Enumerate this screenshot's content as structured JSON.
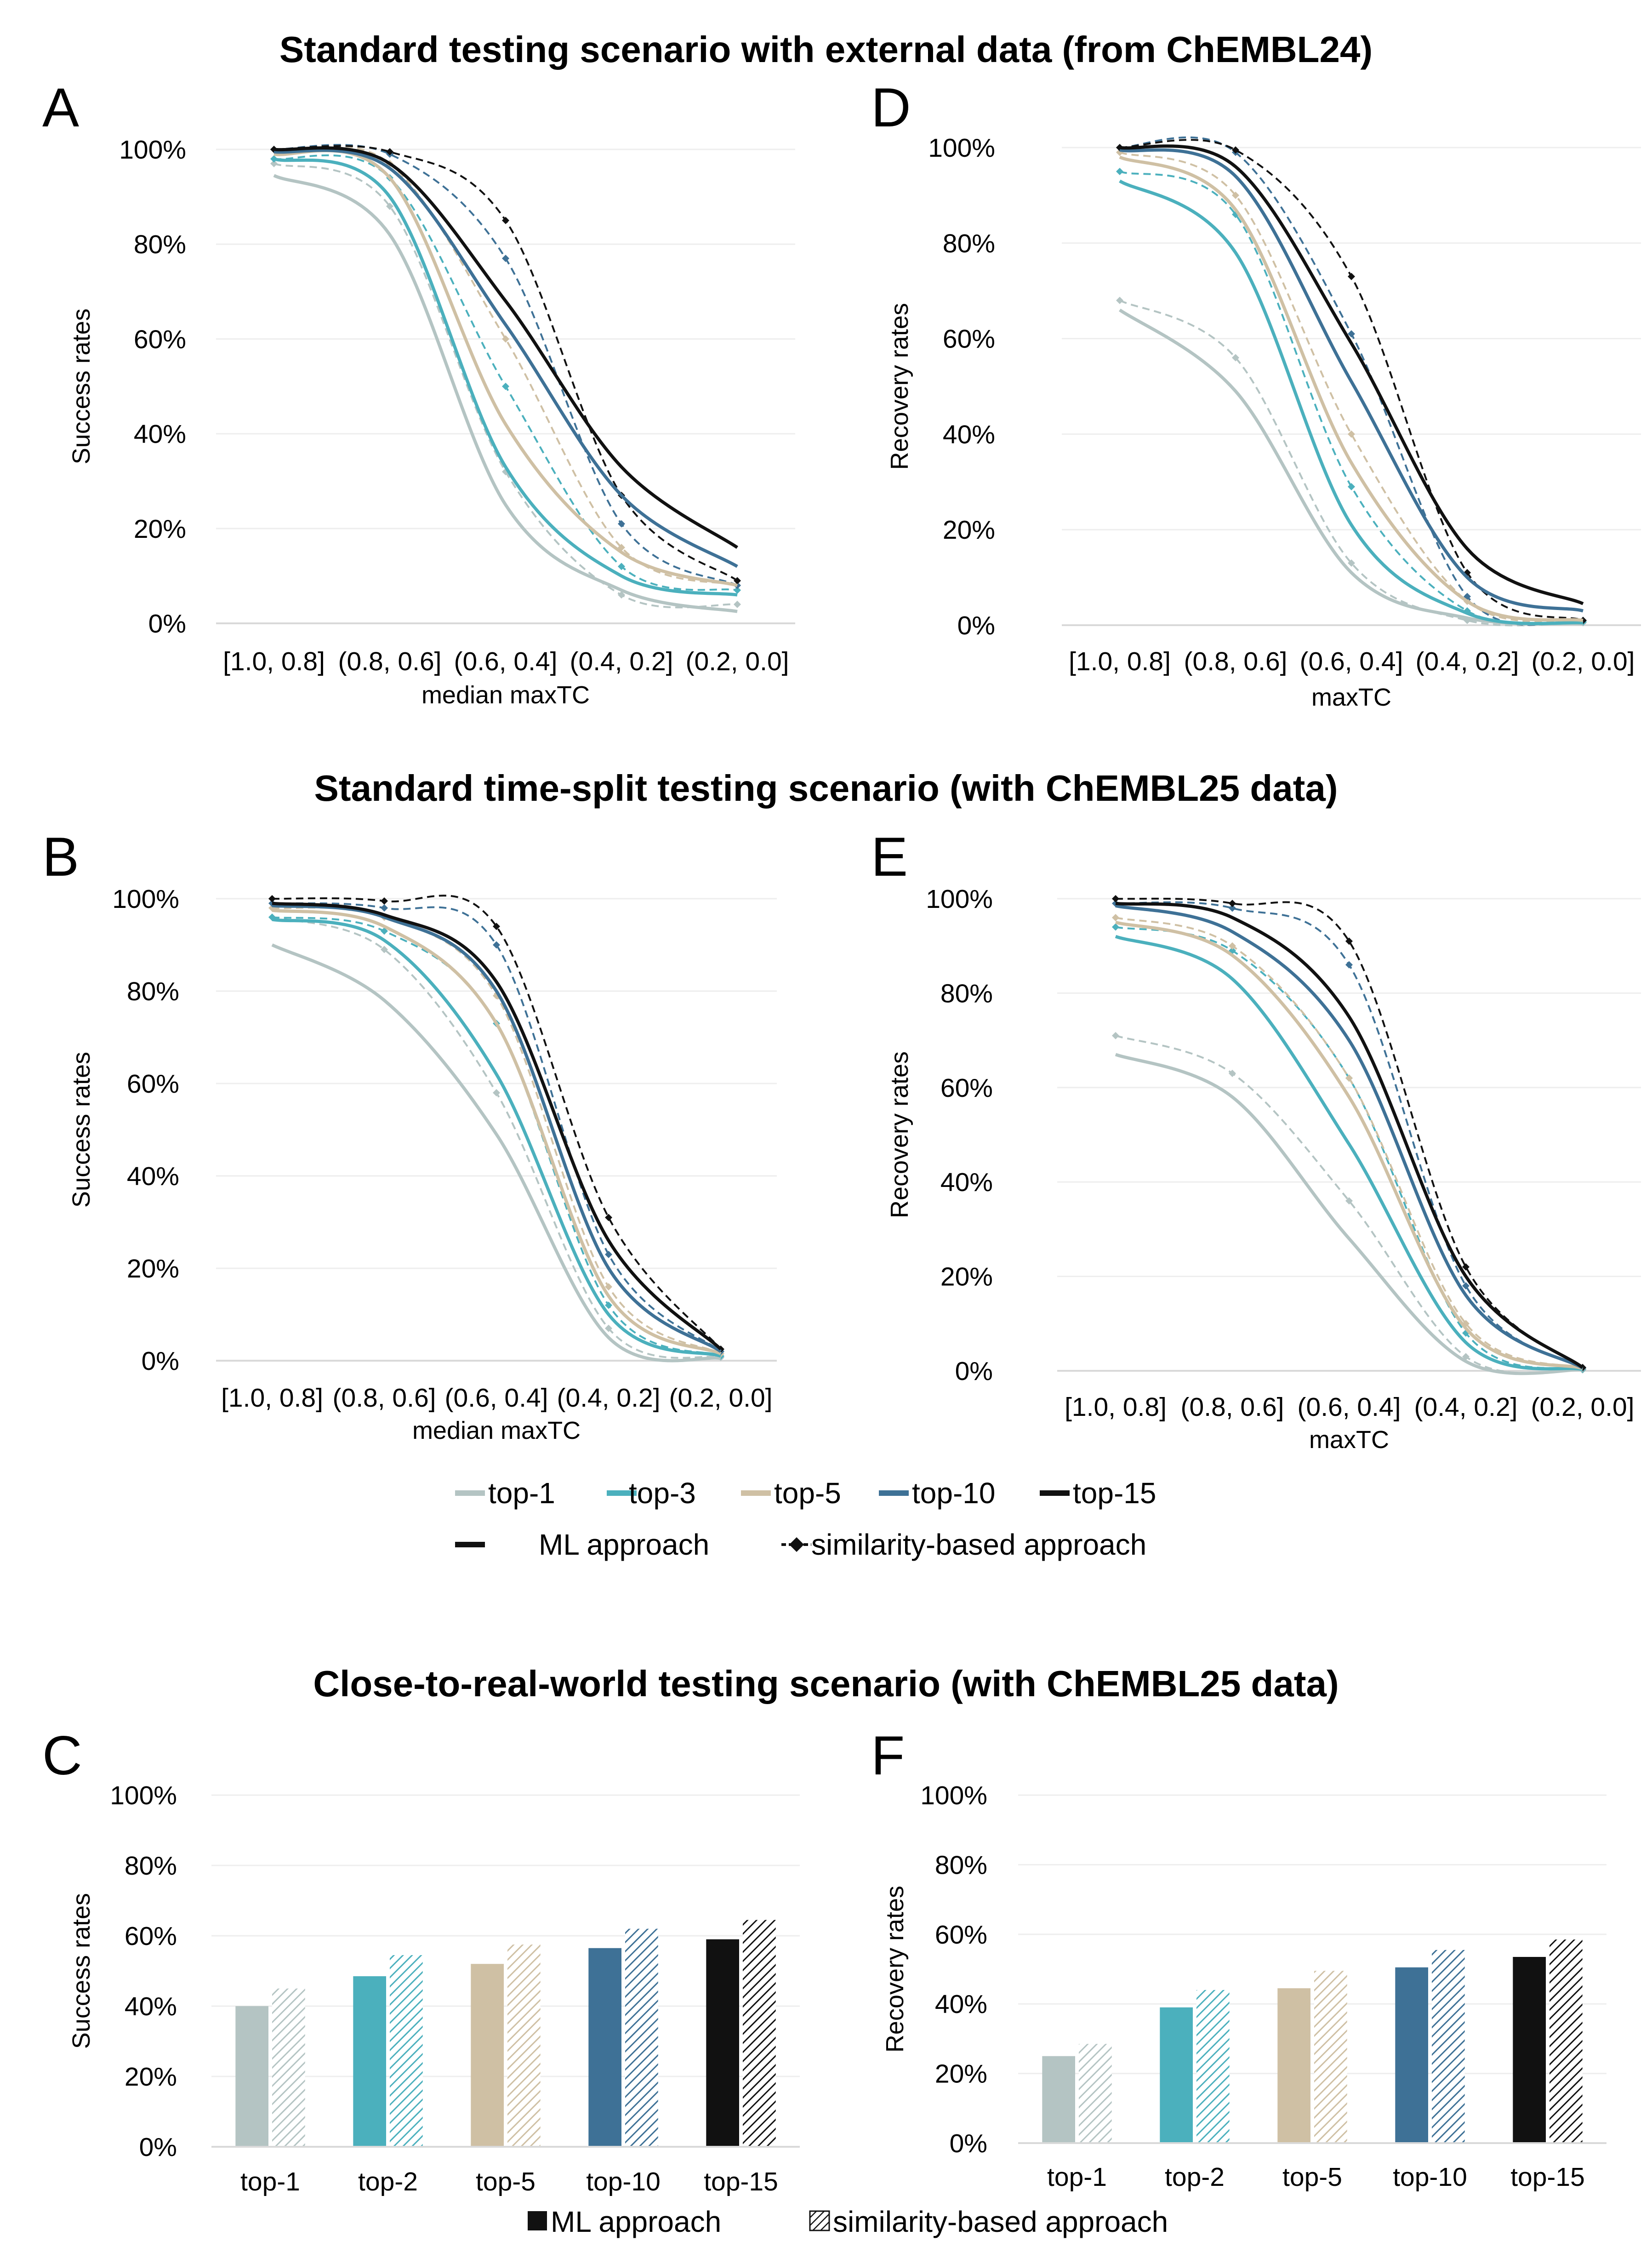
{
  "colors": {
    "top-1": "#b4c4c3",
    "top-3": "#4bb0bd",
    "top-5": "#cfc0a4",
    "top-10": "#3e7196",
    "top-15": "#111111"
  },
  "sections": {
    "s1": "Standard testing scenario with external data (from ChEMBL24)",
    "s2": "Standard time-split testing scenario (with ChEMBL25 data)",
    "s3": "Close-to-real-world testing scenario (with ChEMBL25 data)"
  },
  "line_legend": {
    "series": [
      {
        "key": "top-1",
        "label": "top-1"
      },
      {
        "key": "top-3",
        "label": "top-3"
      },
      {
        "key": "top-5",
        "label": "top-5"
      },
      {
        "key": "top-10",
        "label": "top-10"
      },
      {
        "key": "top-15",
        "label": "top-15"
      }
    ],
    "ml": "ML approach",
    "sim": "similarity-based approach"
  },
  "bar_legend": {
    "ml": "ML approach",
    "sim": "similarity-based approach"
  },
  "chart_data": [
    {
      "id": "A",
      "panel_label": "A",
      "type": "line",
      "xlabel": "median maxTC",
      "ylabel": "Success rates",
      "categories": [
        "[1.0, 0.8]",
        "(0.8, 0.6]",
        "(0.6, 0.4]",
        "(0.4, 0.2]",
        "(0.2, 0.0]"
      ],
      "ylim": [
        0,
        100
      ],
      "yticks": [
        0,
        20,
        40,
        60,
        80,
        100
      ],
      "series": [
        {
          "name": "top-1",
          "ml": [
            94.5,
            82,
            25,
            7,
            2.5
          ],
          "sim": [
            97,
            88,
            32,
            6,
            4
          ]
        },
        {
          "name": "top-3",
          "ml": [
            98,
            90,
            33,
            10,
            6
          ],
          "sim": [
            98,
            94,
            50,
            12,
            7
          ]
        },
        {
          "name": "top-5",
          "ml": [
            99,
            94,
            42,
            15,
            8
          ],
          "sim": [
            100,
            97,
            60,
            16,
            8
          ]
        },
        {
          "name": "top-10",
          "ml": [
            99.5,
            96,
            63,
            27,
            12
          ],
          "sim": [
            100,
            99,
            77,
            21,
            8
          ]
        },
        {
          "name": "top-15",
          "ml": [
            100,
            97,
            68,
            33,
            16
          ],
          "sim": [
            100,
            99.5,
            85,
            27,
            9
          ]
        }
      ]
    },
    {
      "id": "D",
      "panel_label": "D",
      "type": "line",
      "xlabel": "maxTC",
      "ylabel": "Recovery rates",
      "categories": [
        "[1.0, 0.8]",
        "(0.8, 0.6]",
        "(0.6, 0.4]",
        "(0.4, 0.2]",
        "(0.2, 0.0]"
      ],
      "ylim": [
        0,
        100
      ],
      "yticks": [
        0,
        20,
        40,
        60,
        80,
        100
      ],
      "series": [
        {
          "name": "top-1",
          "ml": [
            66,
            49,
            11,
            1.5,
            0.3
          ],
          "sim": [
            68,
            56,
            13,
            1,
            0.5
          ]
        },
        {
          "name": "top-3",
          "ml": [
            93,
            78,
            21,
            2.5,
            0.5
          ],
          "sim": [
            95,
            86,
            29,
            3,
            0.7
          ]
        },
        {
          "name": "top-5",
          "ml": [
            98,
            87,
            34,
            5,
            1
          ],
          "sim": [
            99,
            90,
            40,
            5,
            1
          ]
        },
        {
          "name": "top-10",
          "ml": [
            99.5,
            94,
            51,
            10,
            3
          ],
          "sim": [
            100,
            99,
            61,
            6,
            1
          ]
        },
        {
          "name": "top-15",
          "ml": [
            100,
            96,
            59,
            16,
            4.5
          ],
          "sim": [
            100,
            99.5,
            73,
            11,
            1
          ]
        }
      ]
    },
    {
      "id": "B",
      "panel_label": "B",
      "type": "line",
      "xlabel": "median maxTC",
      "ylabel": "Success rates",
      "categories": [
        "[1.0, 0.8]",
        "(0.8, 0.6]",
        "(0.6, 0.4]",
        "(0.4, 0.2]",
        "(0.2, 0.0]"
      ],
      "ylim": [
        0,
        100
      ],
      "yticks": [
        0,
        20,
        40,
        60,
        80,
        100
      ],
      "series": [
        {
          "name": "top-1",
          "ml": [
            90,
            78,
            49,
            5,
            0.5
          ],
          "sim": [
            96,
            89,
            58,
            7,
            0.7
          ]
        },
        {
          "name": "top-3",
          "ml": [
            95.5,
            91,
            62,
            10,
            1
          ],
          "sim": [
            96,
            93,
            73,
            12,
            1
          ]
        },
        {
          "name": "top-5",
          "ml": [
            97.5,
            94,
            73,
            14,
            1.5
          ],
          "sim": [
            98,
            96,
            79,
            16,
            1.5
          ]
        },
        {
          "name": "top-10",
          "ml": [
            98.5,
            96,
            80,
            20,
            2
          ],
          "sim": [
            99,
            98,
            90,
            23,
            2
          ]
        },
        {
          "name": "top-15",
          "ml": [
            99,
            96.5,
            82,
            26,
            2.5
          ],
          "sim": [
            100,
            99.5,
            94,
            31,
            2.5
          ]
        }
      ]
    },
    {
      "id": "E",
      "panel_label": "E",
      "type": "line",
      "xlabel": "maxTC",
      "ylabel": "Recovery rates",
      "categories": [
        "[1.0, 0.8]",
        "(0.8, 0.6]",
        "(0.6, 0.4]",
        "(0.4, 0.2]",
        "(0.2, 0.0]"
      ],
      "ylim": [
        0,
        100
      ],
      "yticks": [
        0,
        20,
        40,
        60,
        80,
        100
      ],
      "series": [
        {
          "name": "top-1",
          "ml": [
            67,
            58,
            28,
            2,
            0.2
          ],
          "sim": [
            71,
            63,
            36,
            3,
            0.2
          ]
        },
        {
          "name": "top-3",
          "ml": [
            92,
            83,
            48,
            6,
            0.3
          ],
          "sim": [
            94,
            89,
            62,
            8,
            0.3
          ]
        },
        {
          "name": "top-5",
          "ml": [
            95,
            88,
            58,
            9,
            0.5
          ],
          "sim": [
            96,
            90,
            62,
            10,
            0.5
          ]
        },
        {
          "name": "top-10",
          "ml": [
            98.5,
            93,
            70,
            16,
            0.6
          ],
          "sim": [
            99,
            98,
            86,
            18,
            0.6
          ]
        },
        {
          "name": "top-15",
          "ml": [
            99,
            96,
            75,
            20,
            0.7
          ],
          "sim": [
            100,
            99,
            91,
            22,
            0.7
          ]
        }
      ]
    },
    {
      "id": "C",
      "panel_label": "C",
      "type": "bar",
      "ylabel": "Success rates",
      "categories": [
        "top-1",
        "top-2",
        "top-5",
        "top-10",
        "top-15"
      ],
      "ylim": [
        0,
        100
      ],
      "yticks": [
        0,
        20,
        40,
        60,
        80,
        100
      ],
      "series": [
        {
          "name": "ML approach",
          "values": [
            40,
            48.5,
            52,
            56.5,
            59
          ]
        },
        {
          "name": "similarity-based approach",
          "values": [
            45,
            54.5,
            57.5,
            62,
            64.5
          ]
        }
      ]
    },
    {
      "id": "F",
      "panel_label": "F",
      "type": "bar",
      "ylabel": "Recovery rates",
      "categories": [
        "top-1",
        "top-2",
        "top-5",
        "top-10",
        "top-15"
      ],
      "ylim": [
        0,
        100
      ],
      "yticks": [
        0,
        20,
        40,
        60,
        80,
        100
      ],
      "series": [
        {
          "name": "ML approach",
          "values": [
            25,
            39,
            44.5,
            50.5,
            53.5
          ]
        },
        {
          "name": "similarity-based approach",
          "values": [
            28.5,
            44,
            49.5,
            55.5,
            58.5
          ]
        }
      ]
    }
  ]
}
